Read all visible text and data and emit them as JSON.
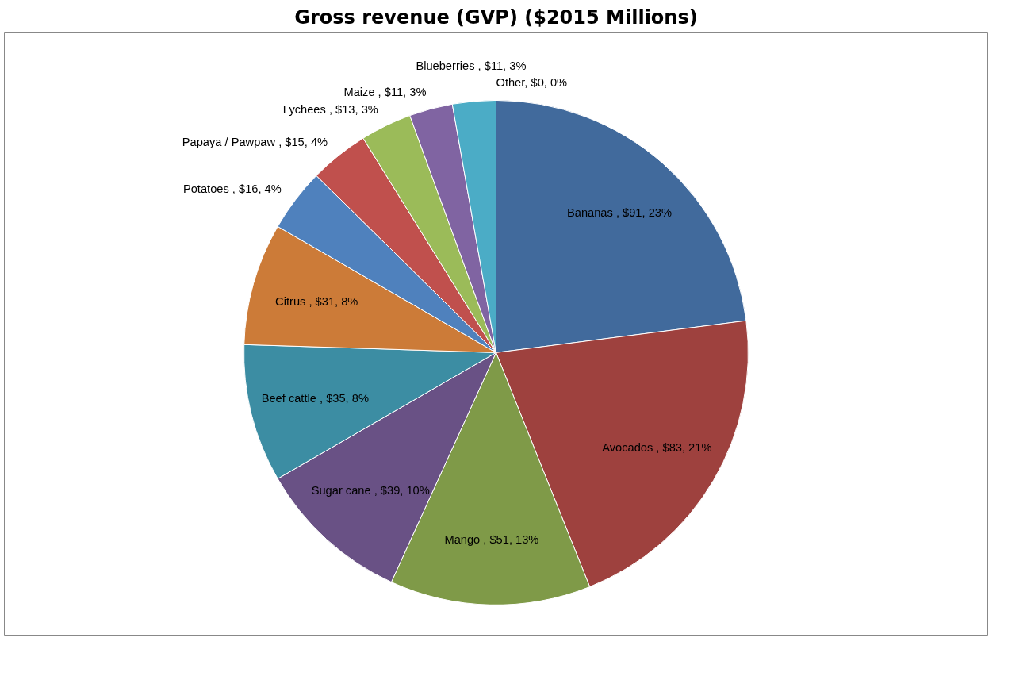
{
  "chart_data": {
    "type": "pie",
    "title": "Gross revenue (GVP) ($2015 Millions)",
    "categories": [
      "Bananas ",
      "Avocados ",
      "Mango ",
      "Sugar cane ",
      "Beef cattle ",
      "Citrus ",
      "Potatoes ",
      "Papaya / Pawpaw ",
      "Lychees ",
      "Maize ",
      "Blueberries ",
      "Other"
    ],
    "values": [
      91,
      83,
      51,
      39,
      35,
      31,
      16,
      15,
      13,
      11,
      11,
      0
    ],
    "colors": [
      "#416a9c",
      "#9e413e",
      "#7f9a48",
      "#695185",
      "#3c8da3",
      "#cc7b38",
      "#4f81bd",
      "#c0504d",
      "#9bbb59",
      "#8064a2",
      "#4bacc6",
      "#f79646"
    ],
    "value_labels": [
      ", $91, 23%",
      ", $83, 21%",
      ", $51, 13%",
      ", $39, 10%",
      ", $35, 8%",
      ", $31, 8%",
      ", $16, 4%",
      ", $15, 4%",
      ", $13, 3%",
      ", $11, 3%",
      ", $11, 3%",
      ", $0, 0%"
    ]
  }
}
